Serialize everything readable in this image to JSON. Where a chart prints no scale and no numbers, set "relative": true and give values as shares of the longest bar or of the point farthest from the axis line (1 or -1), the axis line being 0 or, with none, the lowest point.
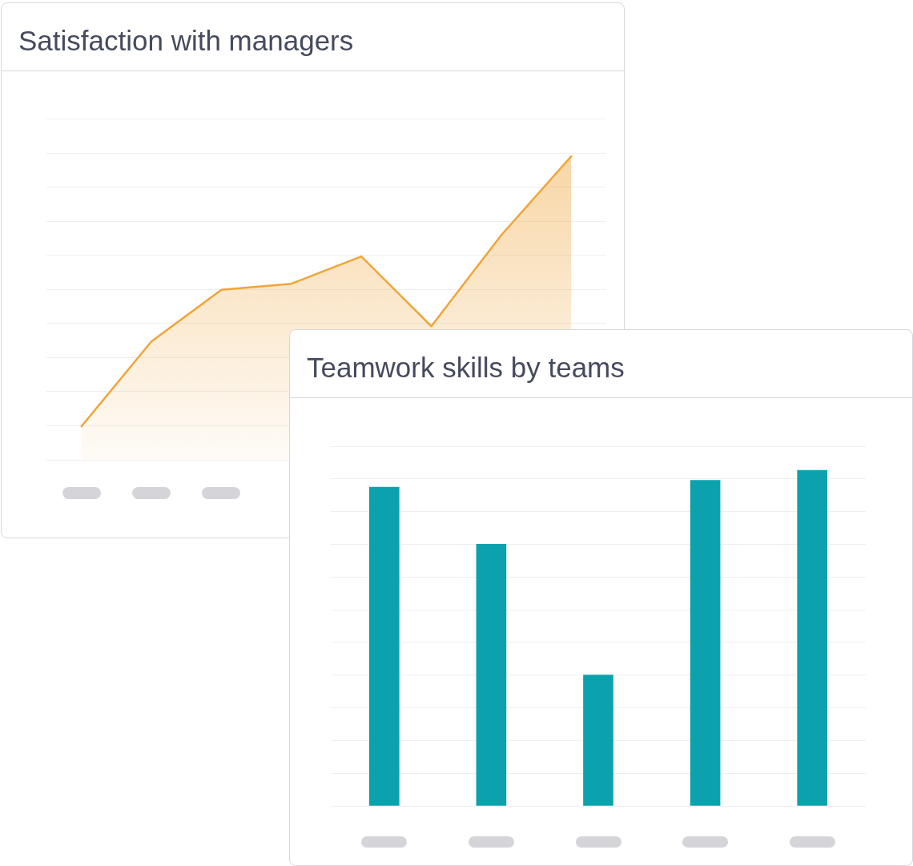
{
  "chart_data": [
    {
      "type": "area",
      "title": "Satisfaction with managers",
      "categories": [
        null,
        null,
        null,
        null,
        null,
        null,
        null,
        null
      ],
      "values": [
        0.11,
        0.39,
        0.56,
        0.58,
        0.67,
        0.44,
        0.74,
        1
      ],
      "color": "#efa53a",
      "relative": true,
      "grid": "y"
    },
    {
      "type": "bar",
      "title": "Teamwork skills by teams",
      "categories": [
        null,
        null,
        null,
        null,
        null
      ],
      "values": [
        0.95,
        0.78,
        0.39,
        0.97,
        1
      ],
      "color": "#0ba2ae",
      "relative": true,
      "grid": "y"
    }
  ]
}
